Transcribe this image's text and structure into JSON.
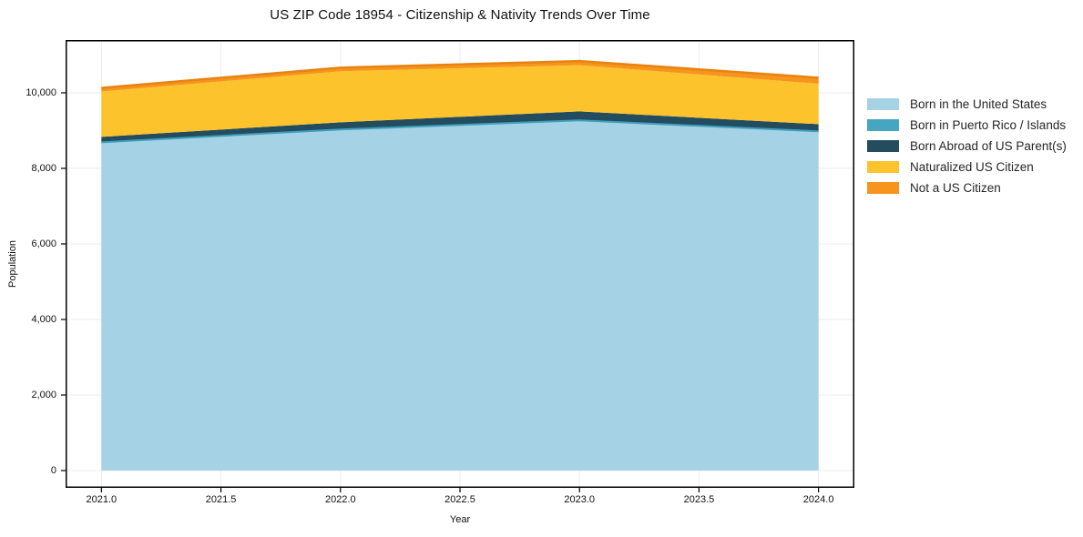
{
  "title": "US ZIP Code 18954 - Citizenship & Nativity Trends Over Time",
  "chart_data": {
    "type": "area",
    "stacked": true,
    "title": "US ZIP Code 18954 - Citizenship & Nativity Trends Over Time",
    "xlabel": "Year",
    "ylabel": "Population",
    "x": [
      2021,
      2022,
      2023,
      2024
    ],
    "series": [
      {
        "name": "Born in the United States",
        "color": "#a6d2e6",
        "values": [
          8690,
          9030,
          9270,
          8980
        ]
      },
      {
        "name": "Born in Puerto Rico / Islands",
        "color": "#46a6c2",
        "values": [
          0,
          0,
          0,
          0
        ]
      },
      {
        "name": "Born Abroad of US Parent(s)",
        "color": "#234d5f",
        "values": [
          145,
          190,
          240,
          190
        ]
      },
      {
        "name": "Naturalized US Citizen",
        "color": "#fcc32d",
        "values": [
          1200,
          1350,
          1220,
          1070
        ]
      },
      {
        "name": "Not a US Citizen",
        "color": "#f7941e",
        "values": [
          95,
          95,
          110,
          160
        ]
      }
    ],
    "edge_lines": [
      {
        "after_series_index": 1,
        "color": "#3f9fbd",
        "width": 2
      },
      {
        "after_series_index": 4,
        "color": "#e8830f",
        "width": 2.5
      }
    ],
    "xlim": [
      2020.85,
      2024.15
    ],
    "ylim": [
      -458,
      11397
    ],
    "xticks": {
      "values": [
        2021,
        2021.5,
        2022,
        2022.5,
        2023,
        2023.5,
        2024
      ],
      "labels": [
        "2021.0",
        "2021.5",
        "2022.0",
        "2022.5",
        "2023.0",
        "2023.5",
        "2024.0"
      ]
    },
    "yticks": {
      "values": [
        0,
        2000,
        4000,
        6000,
        8000,
        10000
      ],
      "labels": [
        "0",
        "2,000",
        "4,000",
        "6,000",
        "8,000",
        "10,000"
      ]
    },
    "grid": true,
    "grid_color": "#ececec",
    "spine_color": "#000000",
    "legend_position": "right of plot, frameless"
  }
}
